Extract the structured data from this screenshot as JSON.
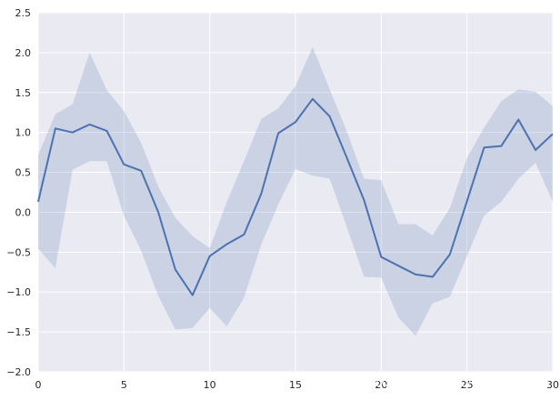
{
  "chart_data": {
    "type": "line",
    "title": "",
    "xlabel": "",
    "ylabel": "",
    "xlim": [
      0,
      30
    ],
    "ylim": [
      -2.0,
      2.5
    ],
    "x_ticks": [
      0,
      5,
      10,
      15,
      20,
      25,
      30
    ],
    "x_tick_labels": [
      "0",
      "5",
      "10",
      "15",
      "20",
      "25",
      "30"
    ],
    "y_ticks": [
      -2.0,
      -1.5,
      -1.0,
      -0.5,
      0.0,
      0.5,
      1.0,
      1.5,
      2.0,
      2.5
    ],
    "y_tick_labels": [
      "−2.0",
      "−1.5",
      "−1.0",
      "−0.5",
      "0.0",
      "0.5",
      "1.0",
      "1.5",
      "2.0",
      "2.5"
    ],
    "grid": true,
    "legend": "none",
    "colors": {
      "line": "#4c72b0",
      "band": "#4c72b0",
      "background": "#eaeaf2",
      "grid": "#ffffff"
    },
    "series": [
      {
        "x": [
          0,
          1,
          2,
          3,
          4,
          5,
          6,
          7,
          8,
          9,
          10,
          11,
          12,
          13,
          14,
          15,
          16,
          17,
          18,
          19,
          20,
          21,
          22,
          23,
          24,
          25,
          26,
          27,
          28,
          29,
          30
        ],
        "values": [
          0.13,
          1.05,
          1.0,
          1.1,
          1.02,
          0.6,
          0.52,
          0.0,
          -0.72,
          -1.04,
          -0.55,
          -0.4,
          -0.28,
          0.23,
          0.99,
          1.13,
          1.42,
          1.2,
          0.68,
          0.15,
          -0.56,
          -0.67,
          -0.78,
          -0.81,
          -0.53,
          0.14,
          0.81,
          0.83,
          1.16,
          0.78,
          0.98
        ],
        "band_upper": [
          0.72,
          1.23,
          1.35,
          2.0,
          1.53,
          1.27,
          0.87,
          0.32,
          -0.07,
          -0.3,
          -0.45,
          0.13,
          0.64,
          1.17,
          1.3,
          1.58,
          2.07,
          1.54,
          1.01,
          0.42,
          0.4,
          -0.15,
          -0.15,
          -0.29,
          0.05,
          0.68,
          1.06,
          1.39,
          1.54,
          1.51,
          1.33
        ],
        "band_lower": [
          -0.46,
          -0.7,
          0.53,
          0.64,
          0.64,
          -0.04,
          -0.48,
          -1.05,
          -1.47,
          -1.45,
          -1.2,
          -1.43,
          -1.07,
          -0.41,
          0.1,
          0.54,
          0.46,
          0.42,
          -0.19,
          -0.81,
          -0.82,
          -1.32,
          -1.55,
          -1.14,
          -1.06,
          -0.55,
          -0.04,
          0.13,
          0.42,
          0.62,
          0.13
        ]
      }
    ]
  },
  "watermark": "http://blog.csdn.net/yuzyu12345"
}
